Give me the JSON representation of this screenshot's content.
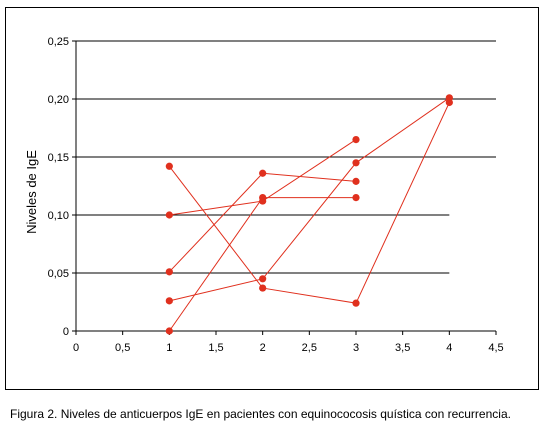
{
  "caption": "Figura 2. Niveles de anticuerpos IgE en pacientes con equinococosis quística con recurrencia.",
  "colors": {
    "series": "#e0301e",
    "grid": "#000000",
    "axis": "#000000"
  },
  "chart_data": {
    "type": "line",
    "title": "",
    "xlabel": "",
    "ylabel": "Niveles de IgE",
    "xlim": [
      0,
      4.5
    ],
    "ylim": [
      0,
      0.25
    ],
    "x_ticks": [
      "0",
      "0,5",
      "1",
      "1,5",
      "2",
      "2,5",
      "3",
      "3,5",
      "4",
      "4,5"
    ],
    "y_ticks": [
      "0",
      "0,05",
      "0,10",
      "0,15",
      "0,20",
      "0,25"
    ],
    "grid": "horizontal",
    "legend": "none",
    "series": [
      {
        "points": [
          [
            1,
            0.142
          ],
          [
            2,
            0.037
          ],
          [
            3,
            0.024
          ],
          [
            4,
            0.197
          ]
        ]
      },
      {
        "points": [
          [
            1,
            0.1
          ],
          [
            2,
            0.112
          ],
          [
            3,
            0.165
          ]
        ]
      },
      {
        "points": [
          [
            1,
            0.051
          ],
          [
            2,
            0.136
          ],
          [
            3,
            0.129
          ]
        ]
      },
      {
        "points": [
          [
            1,
            0.026
          ],
          [
            2,
            0.045
          ],
          [
            3,
            0.145
          ],
          [
            4,
            0.201
          ]
        ]
      },
      {
        "points": [
          [
            1,
            0.0
          ],
          [
            2,
            0.115
          ],
          [
            3,
            0.115
          ]
        ]
      }
    ]
  }
}
